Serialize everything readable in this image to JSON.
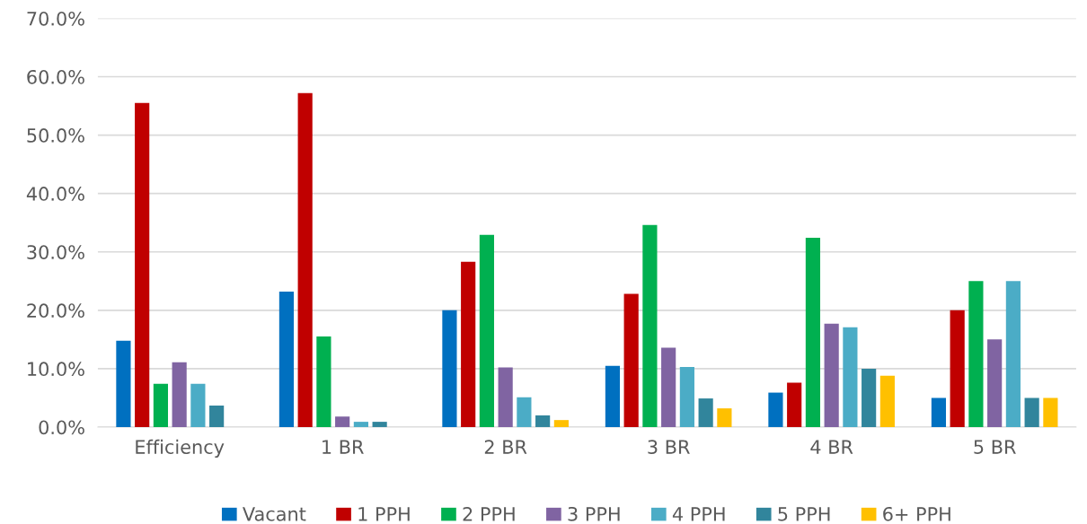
{
  "chart_data": {
    "type": "bar",
    "categories": [
      "Efficiency",
      "1 BR",
      "2 BR",
      "3 BR",
      "4 BR",
      "5 BR"
    ],
    "series": [
      {
        "name": "Vacant",
        "color": "#0070c0",
        "values": [
          14.8,
          23.2,
          20.0,
          10.5,
          5.9,
          5.0
        ]
      },
      {
        "name": "1 PPH",
        "color": "#c00000",
        "values": [
          55.5,
          57.2,
          28.3,
          22.8,
          7.6,
          20.0
        ]
      },
      {
        "name": "2 PPH",
        "color": "#00b050",
        "values": [
          7.4,
          15.5,
          32.9,
          34.6,
          32.4,
          25.0
        ]
      },
      {
        "name": "3 PPH",
        "color": "#8064a2",
        "values": [
          11.1,
          1.8,
          10.2,
          13.6,
          17.7,
          15.0
        ]
      },
      {
        "name": "4 PPH",
        "color": "#4bacc6",
        "values": [
          7.4,
          0.9,
          5.1,
          10.3,
          17.1,
          25.0
        ]
      },
      {
        "name": "5 PPH",
        "color": "#31859c",
        "values": [
          3.7,
          0.9,
          2.0,
          4.9,
          10.0,
          5.0
        ]
      },
      {
        "name": "6+ PPH",
        "color": "#ffc000",
        "values": [
          0,
          0,
          1.2,
          3.2,
          8.8,
          5.0
        ]
      }
    ],
    "ylim": [
      0,
      70
    ],
    "yticks": [
      {
        "value": 0,
        "label": "0.0%"
      },
      {
        "value": 10,
        "label": "10.0%"
      },
      {
        "value": 20,
        "label": "20.0%"
      },
      {
        "value": 30,
        "label": "30.0%"
      },
      {
        "value": 40,
        "label": "40.0%"
      },
      {
        "value": 50,
        "label": "50.0%"
      },
      {
        "value": 60,
        "label": "60.0%"
      },
      {
        "value": 70,
        "label": "70.0%"
      }
    ],
    "grid": "y",
    "legend": "bottom"
  }
}
